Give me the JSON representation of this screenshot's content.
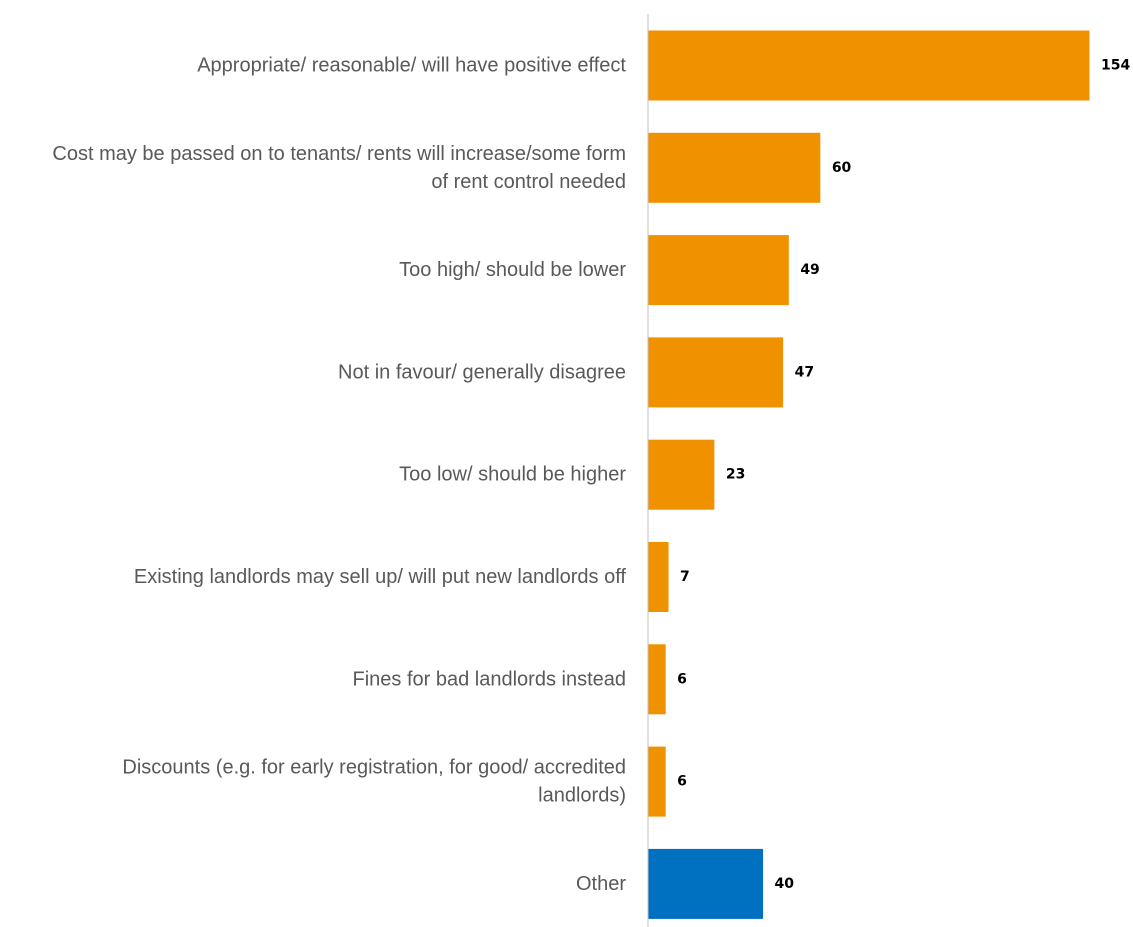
{
  "chart_data": {
    "type": "bar",
    "orientation": "horizontal",
    "title": "",
    "xlabel": "",
    "ylabel": "",
    "grid": false,
    "legend": "none",
    "xlim": [
      0,
      154
    ],
    "categories": [
      [
        "Appropriate/ reasonable/ will have positive effect"
      ],
      [
        "Cost may be passed on to tenants/ rents will increase/some form",
        "of rent control needed"
      ],
      [
        "Too high/ should be lower"
      ],
      [
        "Not in favour/ generally disagree"
      ],
      [
        "Too low/ should be higher"
      ],
      [
        "Existing landlords may sell up/ will put new landlords off"
      ],
      [
        "Fines for bad landlords instead"
      ],
      [
        "Discounts  (e.g. for early registration, for good/ accredited",
        "landlords)"
      ],
      [
        "Other"
      ]
    ],
    "values": [
      154,
      60,
      49,
      47,
      23,
      7,
      6,
      6,
      40
    ],
    "bar_colors": [
      "#f09100",
      "#f09100",
      "#f09100",
      "#f09100",
      "#f09100",
      "#f09100",
      "#f09100",
      "#f09100",
      "#0070c0"
    ],
    "axis_color": "#bfbfbf"
  }
}
